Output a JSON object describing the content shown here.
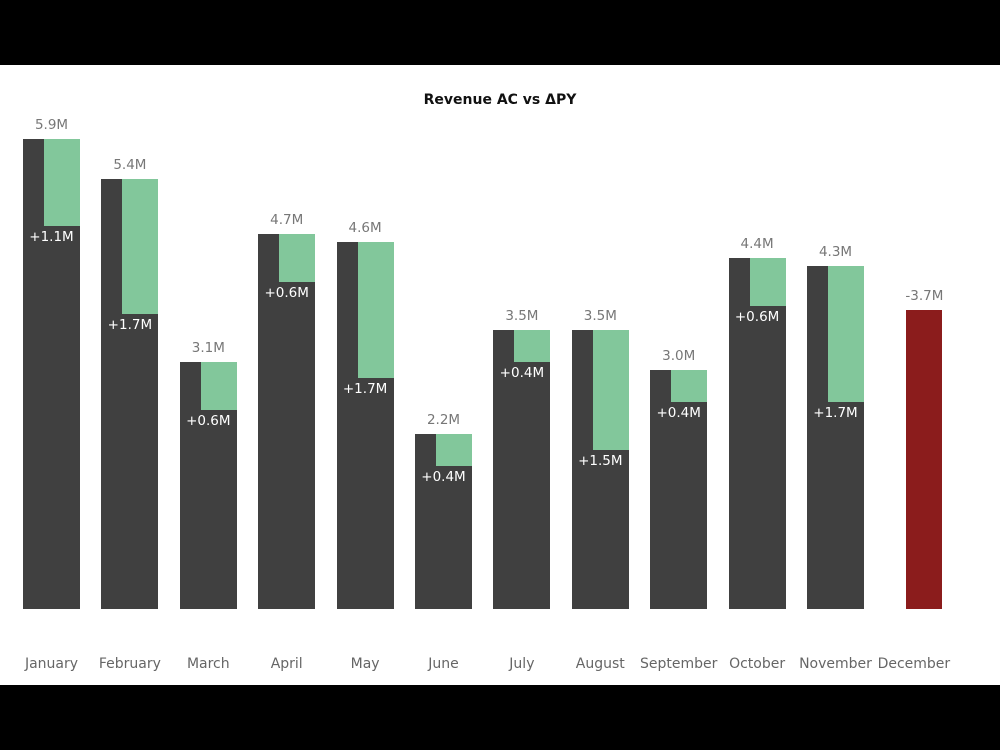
{
  "chart_data": {
    "type": "bar",
    "title": "Revenue AC vs ΔPY",
    "xlabel": "",
    "ylabel": "",
    "categories": [
      "January",
      "February",
      "March",
      "April",
      "May",
      "June",
      "July",
      "August",
      "September",
      "October",
      "November",
      "December"
    ],
    "series": [
      {
        "name": "AC",
        "values": [
          5.9,
          5.4,
          3.1,
          4.7,
          4.6,
          2.2,
          3.5,
          3.5,
          3.0,
          4.4,
          4.3,
          0
        ],
        "labels": [
          "5.9M",
          "5.4M",
          "3.1M",
          "4.7M",
          "4.6M",
          "2.2M",
          "3.5M",
          "3.5M",
          "3.0M",
          "4.4M",
          "4.3M",
          ""
        ],
        "color": "#404040"
      },
      {
        "name": "ΔPY",
        "values": [
          1.1,
          1.7,
          0.6,
          0.6,
          1.7,
          0.4,
          0.4,
          1.5,
          0.4,
          0.6,
          1.7,
          -3.7
        ],
        "labels": [
          "+1.1M",
          "+1.7M",
          "+0.6M",
          "+0.6M",
          "+1.7M",
          "+0.4M",
          "+0.4M",
          "+1.5M",
          "+0.4M",
          "+0.6M",
          "+1.7M",
          "-3.7M"
        ],
        "color_positive": "#82c79b",
        "color_negative": "#8b1c1c"
      }
    ],
    "grid": false,
    "legend": "none",
    "units": "M"
  },
  "ui": {
    "title": "Revenue AC vs ΔPY"
  }
}
